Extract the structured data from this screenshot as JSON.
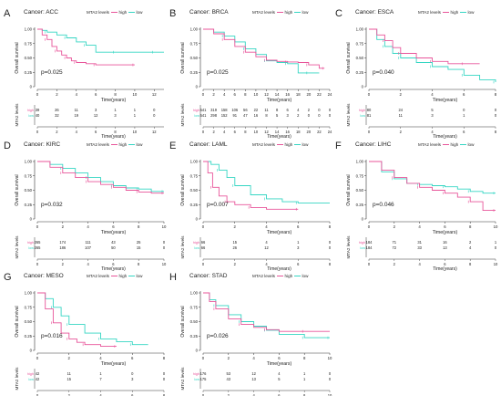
{
  "figure": {
    "y_label": "Overall survival",
    "x_label": "Time(years)",
    "table_label": "MTA2 levels",
    "legend_title": "MTA2 levels",
    "legend_high": "high",
    "legend_low": "low",
    "table_high": "high",
    "table_low": "low",
    "colors": {
      "high": "#e8559a",
      "low": "#35d6c3",
      "table_high": "#e8559a",
      "table_low": "#35d6c3"
    }
  },
  "chart_data": [
    {
      "type": "line",
      "panel_letter": "A",
      "title": "Cancer: ACC",
      "pvalue": "p=0.025",
      "xlim": [
        0,
        13
      ],
      "ylim": [
        0,
        1
      ],
      "x_ticks": [
        0,
        2,
        4,
        6,
        8,
        10,
        12
      ],
      "y_ticks": [
        0,
        0.25,
        0.5,
        0.75,
        1
      ],
      "series": [
        {
          "name": "high",
          "x": [
            0,
            0.5,
            1,
            1.5,
            2,
            2.5,
            3,
            3.5,
            4,
            5,
            6,
            8,
            10
          ],
          "y": [
            1,
            0.9,
            0.82,
            0.7,
            0.62,
            0.55,
            0.5,
            0.45,
            0.42,
            0.4,
            0.38,
            0.38,
            0.38
          ]
        },
        {
          "name": "low",
          "x": [
            0,
            0.5,
            1,
            2,
            3,
            4,
            5,
            6,
            8,
            10,
            12,
            13
          ],
          "y": [
            1,
            0.98,
            0.95,
            0.9,
            0.85,
            0.78,
            0.72,
            0.6,
            0.6,
            0.6,
            0.6,
            0.6
          ]
        }
      ],
      "risk_table": {
        "times": [
          0,
          2,
          4,
          6,
          8,
          10,
          12
        ],
        "high": [
          "39",
          "26",
          "11",
          "3",
          "1",
          "1",
          "0"
        ],
        "low": [
          "40",
          "32",
          "19",
          "12",
          "3",
          "1",
          "0"
        ]
      }
    },
    {
      "type": "line",
      "panel_letter": "B",
      "title": "Cancer: BRCA",
      "pvalue": "p=0.025",
      "xlim": [
        0,
        24
      ],
      "ylim": [
        0,
        1
      ],
      "x_ticks": [
        0,
        2,
        4,
        6,
        8,
        10,
        12,
        14,
        16,
        18,
        20,
        22,
        24
      ],
      "y_ticks": [
        0,
        0.25,
        0.5,
        0.75,
        1
      ],
      "series": [
        {
          "name": "high",
          "x": [
            0,
            2,
            4,
            6,
            8,
            10,
            12,
            14,
            16,
            18,
            20,
            22,
            23
          ],
          "y": [
            1,
            0.92,
            0.82,
            0.7,
            0.6,
            0.52,
            0.46,
            0.44,
            0.43,
            0.42,
            0.38,
            0.32,
            0.32
          ]
        },
        {
          "name": "low",
          "x": [
            0,
            2,
            4,
            6,
            8,
            10,
            12,
            14,
            16,
            18,
            20,
            22
          ],
          "y": [
            1,
            0.95,
            0.88,
            0.78,
            0.66,
            0.56,
            0.45,
            0.42,
            0.4,
            0.24,
            0.24,
            0.24
          ]
        }
      ],
      "risk_table": {
        "times": [
          0,
          2,
          4,
          6,
          8,
          10,
          12,
          14,
          16,
          18,
          20,
          22,
          24
        ],
        "high": [
          "541",
          "319",
          "158",
          "106",
          "56",
          "22",
          "11",
          "8",
          "6",
          "4",
          "2",
          "0",
          "0"
        ],
        "low": [
          "541",
          "298",
          "152",
          "91",
          "47",
          "16",
          "8",
          "5",
          "3",
          "2",
          "0",
          "0",
          "0"
        ]
      }
    },
    {
      "type": "line",
      "panel_letter": "C",
      "title": "Cancer: ESCA",
      "pvalue": "p=0.040",
      "xlim": [
        0,
        8
      ],
      "ylim": [
        0,
        1
      ],
      "x_ticks": [
        0,
        2,
        4,
        6,
        8
      ],
      "y_ticks": [
        0,
        0.25,
        0.5,
        0.75,
        1
      ],
      "series": [
        {
          "name": "high",
          "x": [
            0,
            0.5,
            1,
            1.5,
            2,
            3,
            4,
            5,
            6,
            7
          ],
          "y": [
            1,
            0.9,
            0.8,
            0.68,
            0.58,
            0.5,
            0.44,
            0.4,
            0.4,
            0.4
          ]
        },
        {
          "name": "low",
          "x": [
            0,
            0.5,
            1,
            1.5,
            2,
            3,
            4,
            5,
            6,
            7,
            8
          ],
          "y": [
            1,
            0.82,
            0.7,
            0.58,
            0.5,
            0.42,
            0.35,
            0.3,
            0.2,
            0.12,
            0.08
          ]
        }
      ],
      "risk_table": {
        "times": [
          0,
          2,
          4,
          6,
          8
        ],
        "high": [
          "80",
          "24",
          "5",
          "0",
          "0"
        ],
        "low": [
          "81",
          "11",
          "3",
          "1",
          "0"
        ]
      }
    },
    {
      "type": "line",
      "panel_letter": "D",
      "title": "Cancer: KIRC",
      "pvalue": "p=0.032",
      "xlim": [
        0,
        10
      ],
      "ylim": [
        0,
        1
      ],
      "x_ticks": [
        0,
        2,
        4,
        6,
        8,
        10
      ],
      "y_ticks": [
        0,
        0.25,
        0.5,
        0.75,
        1
      ],
      "series": [
        {
          "name": "high",
          "x": [
            0,
            1,
            2,
            3,
            4,
            5,
            6,
            7,
            8,
            9,
            10
          ],
          "y": [
            1,
            0.9,
            0.8,
            0.72,
            0.65,
            0.6,
            0.55,
            0.5,
            0.47,
            0.45,
            0.45
          ]
        },
        {
          "name": "low",
          "x": [
            0,
            1,
            2,
            3,
            4,
            5,
            6,
            7,
            8,
            9,
            10
          ],
          "y": [
            1,
            0.95,
            0.88,
            0.8,
            0.72,
            0.65,
            0.58,
            0.54,
            0.52,
            0.48,
            0.48
          ]
        }
      ],
      "risk_table": {
        "times": [
          0,
          2,
          4,
          6,
          8,
          10
        ],
        "high": [
          "265",
          "174",
          "111",
          "43",
          "25",
          "0"
        ],
        "low": [
          "265",
          "186",
          "107",
          "50",
          "15",
          "0"
        ]
      }
    },
    {
      "type": "line",
      "panel_letter": "E",
      "title": "Cancer: LAML",
      "pvalue": "p=0.007",
      "xlim": [
        0,
        8
      ],
      "ylim": [
        0,
        1
      ],
      "x_ticks": [
        0,
        2,
        4,
        6,
        8
      ],
      "y_ticks": [
        0,
        0.25,
        0.5,
        0.75,
        1
      ],
      "series": [
        {
          "name": "high",
          "x": [
            0,
            0.3,
            0.6,
            1,
            1.5,
            2,
            3,
            4,
            6
          ],
          "y": [
            1,
            0.8,
            0.55,
            0.4,
            0.3,
            0.25,
            0.2,
            0.17,
            0.17
          ]
        },
        {
          "name": "low",
          "x": [
            0,
            0.5,
            1,
            1.5,
            2,
            3,
            4,
            5,
            6,
            8
          ],
          "y": [
            1,
            0.95,
            0.85,
            0.72,
            0.58,
            0.42,
            0.35,
            0.3,
            0.28,
            0.28
          ]
        }
      ],
      "risk_table": {
        "times": [
          0,
          2,
          4,
          6,
          8
        ],
        "high": [
          "66",
          "15",
          "4",
          "1",
          "0"
        ],
        "low": [
          "66",
          "26",
          "12",
          "3",
          "0"
        ]
      }
    },
    {
      "type": "line",
      "panel_letter": "F",
      "title": "Cancer: LIHC",
      "pvalue": "p=0.046",
      "xlim": [
        0,
        10
      ],
      "ylim": [
        0,
        1
      ],
      "x_ticks": [
        0,
        2,
        4,
        6,
        8,
        10
      ],
      "y_ticks": [
        0,
        0.25,
        0.5,
        0.75,
        1
      ],
      "series": [
        {
          "name": "high",
          "x": [
            0,
            1,
            2,
            3,
            4,
            5,
            6,
            7,
            8,
            9,
            10
          ],
          "y": [
            1,
            0.85,
            0.72,
            0.62,
            0.55,
            0.5,
            0.45,
            0.38,
            0.3,
            0.15,
            0.15
          ]
        },
        {
          "name": "low",
          "x": [
            0,
            1,
            2,
            3,
            4,
            5,
            6,
            7,
            8,
            9,
            10
          ],
          "y": [
            1,
            0.82,
            0.7,
            0.62,
            0.6,
            0.58,
            0.56,
            0.52,
            0.48,
            0.45,
            0.45
          ]
        }
      ],
      "risk_table": {
        "times": [
          0,
          2,
          4,
          6,
          8,
          10
        ],
        "high": [
          "184",
          "71",
          "31",
          "16",
          "2",
          "1"
        ],
        "low": [
          "184",
          "72",
          "33",
          "13",
          "4",
          "0"
        ]
      }
    },
    {
      "type": "line",
      "panel_letter": "G",
      "title": "Cancer: MESO",
      "pvalue": "p=0.016",
      "xlim": [
        0,
        8
      ],
      "ylim": [
        0,
        1
      ],
      "x_ticks": [
        0,
        2,
        4,
        6,
        8
      ],
      "y_ticks": [
        0,
        0.25,
        0.5,
        0.75,
        1
      ],
      "series": [
        {
          "name": "high",
          "x": [
            0,
            0.5,
            1,
            1.5,
            2,
            2.5,
            3,
            4,
            5
          ],
          "y": [
            1,
            0.72,
            0.48,
            0.3,
            0.2,
            0.14,
            0.1,
            0.07,
            0.07
          ]
        },
        {
          "name": "low",
          "x": [
            0,
            0.5,
            1,
            1.5,
            2,
            3,
            4,
            5,
            6,
            7
          ],
          "y": [
            1,
            0.9,
            0.75,
            0.6,
            0.45,
            0.3,
            0.2,
            0.15,
            0.1,
            0.1
          ]
        }
      ],
      "risk_table": {
        "times": [
          0,
          2,
          4,
          6,
          8
        ],
        "high": [
          "42",
          "11",
          "1",
          "0",
          "0"
        ],
        "low": [
          "42",
          "15",
          "7",
          "3",
          "0"
        ]
      }
    },
    {
      "type": "line",
      "panel_letter": "H",
      "title": "Cancer: STAD",
      "pvalue": "p=0.026",
      "xlim": [
        0,
        10
      ],
      "ylim": [
        0,
        1
      ],
      "x_ticks": [
        0,
        2,
        4,
        6,
        8,
        10
      ],
      "y_ticks": [
        0,
        0.25,
        0.5,
        0.75,
        1
      ],
      "series": [
        {
          "name": "high",
          "x": [
            0,
            0.5,
            1,
            2,
            3,
            4,
            5,
            6,
            8,
            10
          ],
          "y": [
            1,
            0.85,
            0.72,
            0.55,
            0.45,
            0.4,
            0.36,
            0.33,
            0.33,
            0.33
          ]
        },
        {
          "name": "low",
          "x": [
            0,
            0.5,
            1,
            2,
            3,
            4,
            5,
            6,
            8,
            9,
            10
          ],
          "y": [
            1,
            0.88,
            0.78,
            0.62,
            0.5,
            0.42,
            0.35,
            0.28,
            0.22,
            0.22,
            0.22
          ]
        }
      ],
      "risk_table": {
        "times": [
          0,
          2,
          4,
          6,
          8,
          10
        ],
        "high": [
          "176",
          "53",
          "12",
          "4",
          "1",
          "0"
        ],
        "low": [
          "175",
          "43",
          "13",
          "5",
          "1",
          "0"
        ]
      }
    }
  ]
}
